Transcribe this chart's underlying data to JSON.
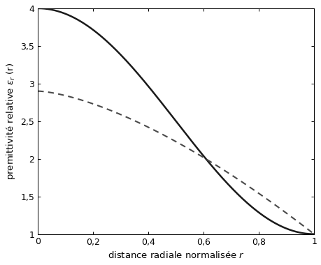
{
  "xlabel": "distance radiale normalisée $r$",
  "ylabel": "premittivité relative $\\mathcal{E}_r$ (r)",
  "xlim": [
    0,
    1
  ],
  "ylim": [
    1,
    4
  ],
  "xticks": [
    0,
    0.2,
    0.4,
    0.6,
    0.8,
    1.0
  ],
  "yticks": [
    1,
    1.5,
    2,
    2.5,
    3,
    3.5,
    4
  ],
  "xtick_labels": [
    "0",
    "0,2",
    "0,4",
    "0,6",
    "0,8",
    "1"
  ],
  "ytick_labels": [
    "1",
    "1,5",
    "2",
    "2,5",
    "3",
    "3,5",
    "4"
  ],
  "solid_color": "#1a1a1a",
  "dashed_color": "#4a4a4a",
  "solid_lw": 1.8,
  "dashed_lw": 1.5,
  "n_points": 500,
  "solid_eps0": 4.0,
  "dashed_eps0": 2.9,
  "background_color": "#ffffff",
  "figsize": [
    4.6,
    3.8
  ],
  "dpi": 100,
  "tick_fontsize": 9,
  "label_fontsize": 9.5
}
